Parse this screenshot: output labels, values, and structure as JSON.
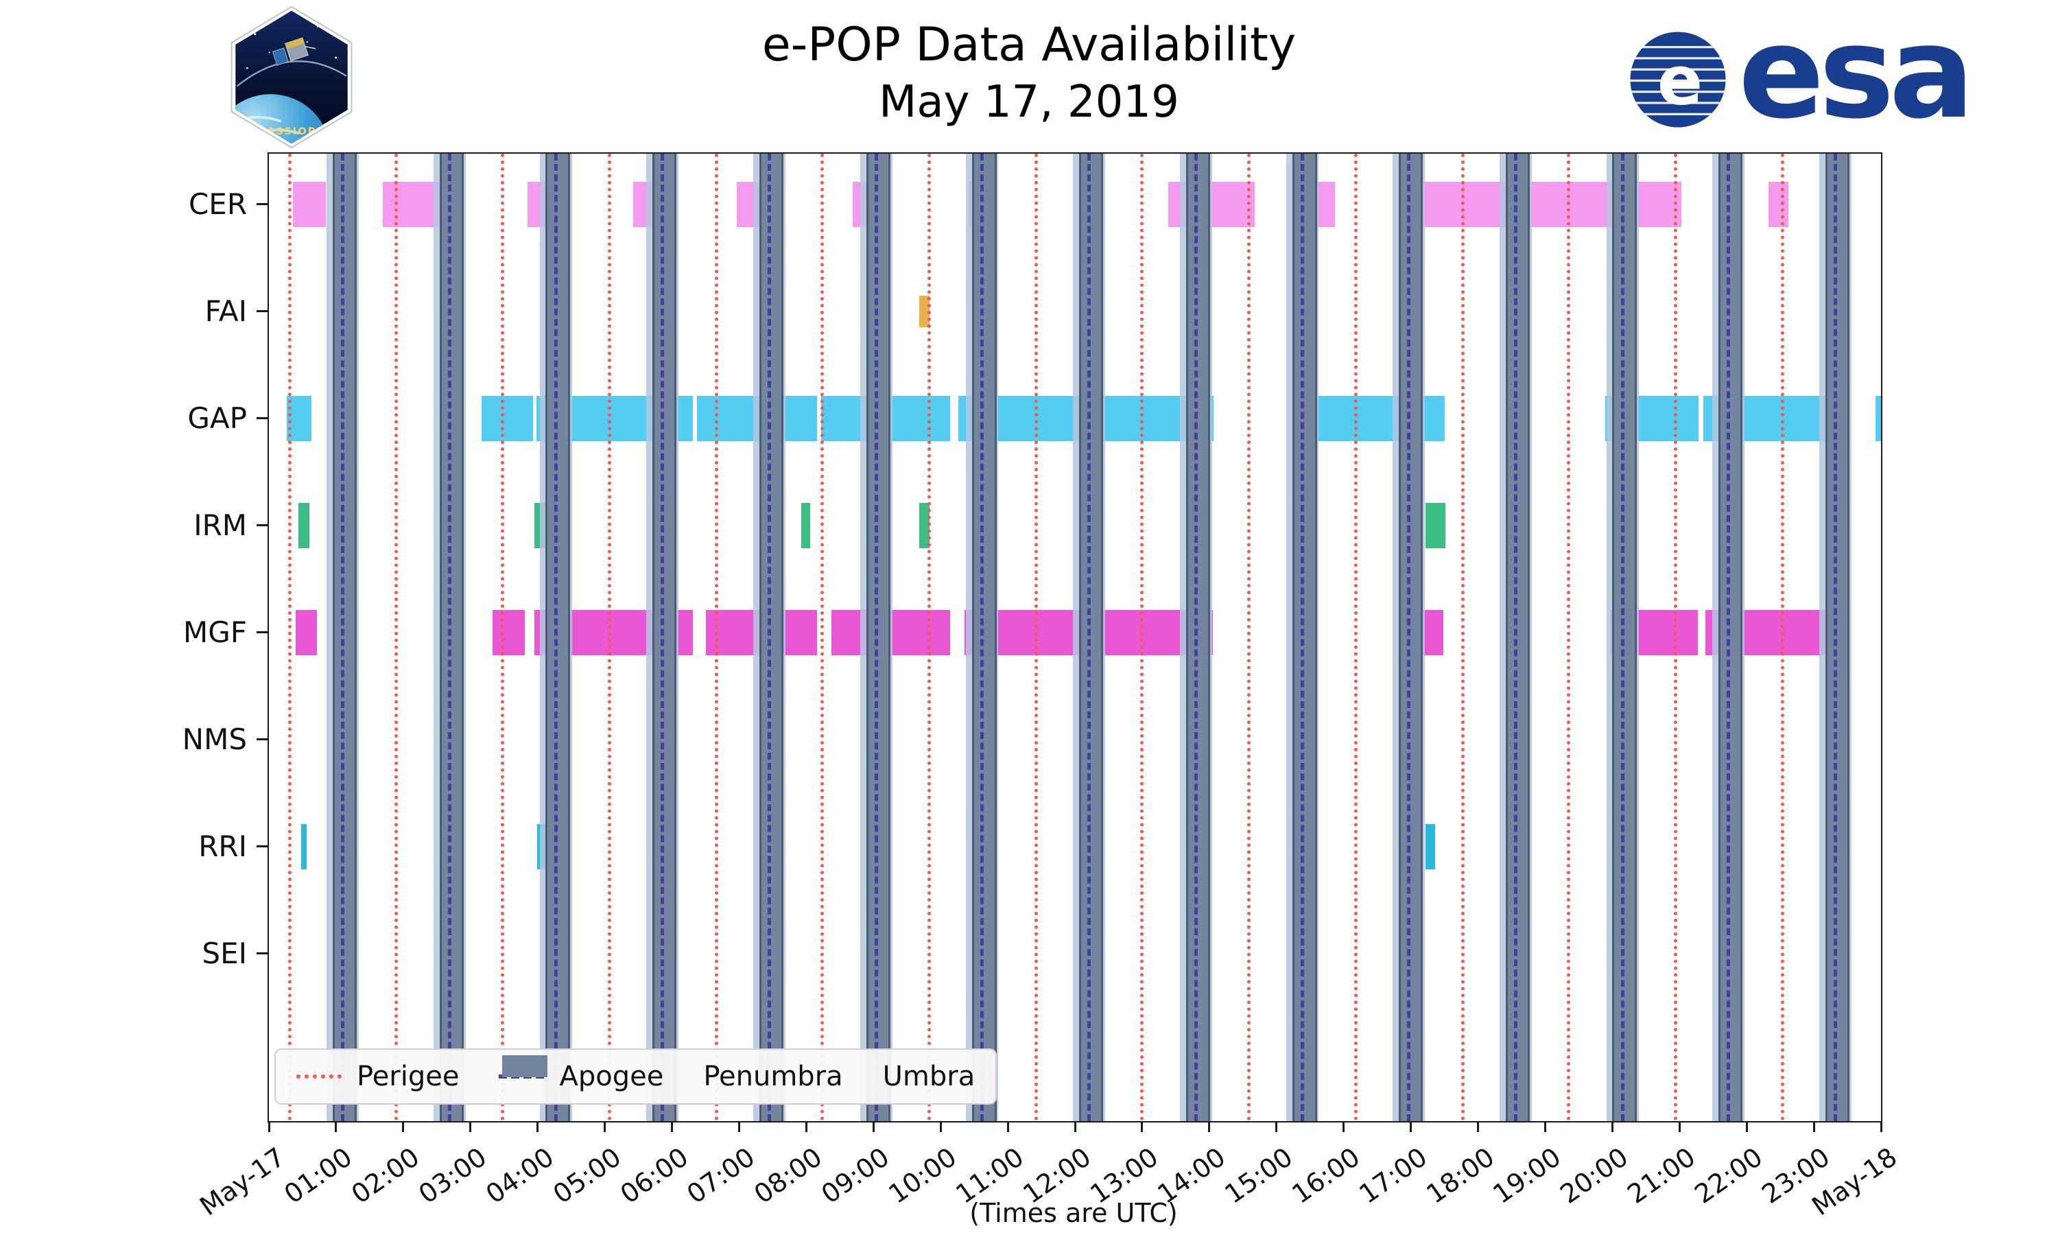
{
  "header": {
    "title": "e-POP Data Availability",
    "date": "May 17, 2019"
  },
  "branding": {
    "esa_wordmark": "esa",
    "patch_label": "CASSIOPE"
  },
  "axis": {
    "xlabel": "(Times are UTC)",
    "ticks": [
      "May-17",
      "01:00",
      "02:00",
      "03:00",
      "04:00",
      "05:00",
      "06:00",
      "07:00",
      "08:00",
      "09:00",
      "10:00",
      "11:00",
      "12:00",
      "13:00",
      "14:00",
      "15:00",
      "16:00",
      "17:00",
      "18:00",
      "19:00",
      "20:00",
      "21:00",
      "22:00",
      "23:00",
      "May-18"
    ]
  },
  "legend": {
    "items": [
      {
        "label": "Perigee",
        "style": "dotted",
        "color": "#ef5a4e"
      },
      {
        "label": "Apogee",
        "style": "dashed",
        "color": "#45419b"
      },
      {
        "label": "Penumbra",
        "style": "patch",
        "color": "#b4c6de"
      },
      {
        "label": "Umbra",
        "style": "patch",
        "color": "#72849e"
      }
    ]
  },
  "chart_data": {
    "type": "timeline",
    "title": "e-POP Data Availability",
    "subtitle": "May 17, 2019",
    "time_range_hours": [
      0,
      24
    ],
    "tick_interval_hours": 1,
    "rows": [
      "CER",
      "FAI",
      "GAP",
      "IRM",
      "MGF",
      "NMS",
      "RRI",
      "SEI"
    ],
    "row_colors": {
      "CER": "#f49bf0",
      "FAI": "#eab04e",
      "GAP": "#55ccf2",
      "IRM": "#3cbd85",
      "MGF": "#ea57d4",
      "NMS": "#c0c0c0",
      "RRI": "#29b9dc",
      "SEI": "#c0c0c0"
    },
    "bar_heights": {
      "default": 66,
      "FAI": 46
    },
    "availability": {
      "CER": [
        [
          0.36,
          0.85
        ],
        [
          1.69,
          2.72
        ],
        [
          3.85,
          4.37
        ],
        [
          5.42,
          5.89
        ],
        [
          6.96,
          7.5
        ],
        [
          8.69,
          8.97
        ],
        [
          10.42,
          10.67
        ],
        [
          12.14,
          12.38
        ],
        [
          13.39,
          14.68
        ],
        [
          15.38,
          15.87
        ],
        [
          17.0,
          21.03
        ],
        [
          22.32,
          22.62
        ]
      ],
      "FAI": [
        [
          9.68,
          9.84
        ]
      ],
      "GAP": [
        [
          0.26,
          0.63
        ],
        [
          3.17,
          3.93
        ],
        [
          3.98,
          6.31
        ],
        [
          6.37,
          8.16
        ],
        [
          8.22,
          10.14
        ],
        [
          10.26,
          12.19
        ],
        [
          12.31,
          14.06
        ],
        [
          15.33,
          16.94
        ],
        [
          17.0,
          17.5
        ],
        [
          19.89,
          21.28
        ],
        [
          21.35,
          23.2
        ],
        [
          23.92,
          24.0
        ]
      ],
      "IRM": [
        [
          0.44,
          0.6
        ],
        [
          3.95,
          4.31
        ],
        [
          5.71,
          5.89
        ],
        [
          7.4,
          7.66
        ],
        [
          7.92,
          8.06
        ],
        [
          9.68,
          9.84
        ],
        [
          17.22,
          17.52
        ]
      ],
      "MGF": [
        [
          0.4,
          0.71
        ],
        [
          3.33,
          3.81
        ],
        [
          3.95,
          4.25
        ],
        [
          4.46,
          6.31
        ],
        [
          6.51,
          8.16
        ],
        [
          8.37,
          10.14
        ],
        [
          10.36,
          12.14
        ],
        [
          12.3,
          14.05
        ],
        [
          17.16,
          17.48
        ],
        [
          19.98,
          21.27
        ],
        [
          21.39,
          23.17
        ]
      ],
      "NMS": [],
      "RRI": [
        [
          0.48,
          0.56
        ],
        [
          3.99,
          4.17
        ],
        [
          17.22,
          17.36
        ]
      ],
      "SEI": []
    },
    "orbit": {
      "perigee_times_utc_hours": [
        0.31,
        1.89,
        3.48,
        5.07,
        6.66,
        8.24,
        9.83,
        11.42,
        13.0,
        14.59,
        16.18,
        17.77,
        19.35,
        20.94,
        22.53
      ],
      "apogee_times_utc_hours": [
        1.1,
        2.69,
        4.27,
        5.86,
        7.45,
        9.04,
        10.62,
        12.21,
        13.8,
        15.39,
        16.97,
        18.56,
        20.15,
        21.73,
        23.32
      ],
      "umbra_halfwidth_hours": 0.15,
      "penumbra_halfwidth_hours": 0.24,
      "colors": {
        "perigee": "#ef5a4e",
        "apogee": "#45419b",
        "penumbra": "rgba(180,198,222,0.85)",
        "umbra": "rgba(110,128,152,0.92)",
        "umbra_edge": "rgba(70,86,110,0.9)"
      }
    }
  }
}
